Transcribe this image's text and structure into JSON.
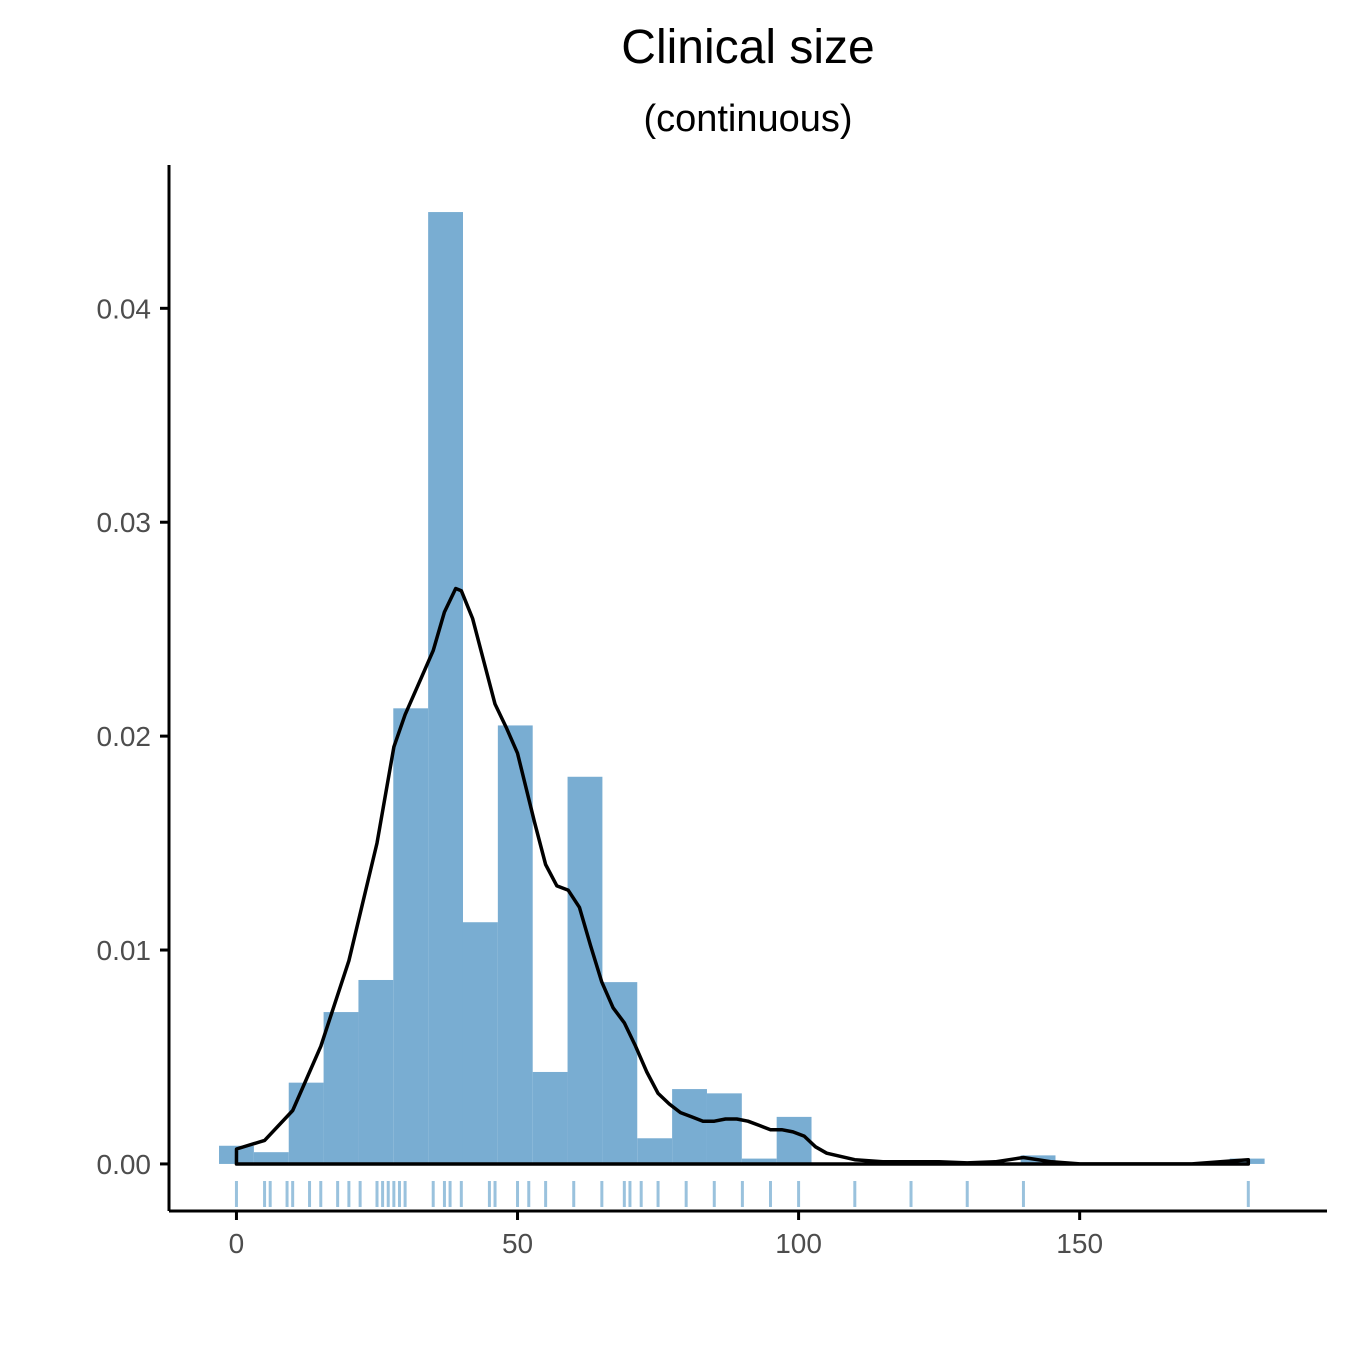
{
  "chart_data": {
    "type": "histogram",
    "title": "Clinical size",
    "subtitle": "(continuous)",
    "xlabel": "",
    "ylabel": "",
    "xlim": [
      -12,
      194
    ],
    "ylim": [
      -0.0022,
      0.0467
    ],
    "x_ticks": [
      0,
      50,
      100,
      150
    ],
    "y_ticks": [
      0,
      0.01,
      0.02,
      0.03,
      0.04
    ],
    "x_tick_labels": [
      "0",
      "50",
      "100",
      "150"
    ],
    "y_tick_labels": [
      "0.00",
      "0.01",
      "0.02",
      "0.03",
      "0.04"
    ],
    "grid": false,
    "legend": "none",
    "bar_color": "#79add2",
    "density_color": "#000000",
    "rug_color": "#1f78b4",
    "bins": [
      {
        "x0": -3.1,
        "x1": 3.1,
        "density": 0.00085
      },
      {
        "x0": 3.1,
        "x1": 9.3,
        "density": 0.00055
      },
      {
        "x0": 9.3,
        "x1": 15.5,
        "density": 0.0038
      },
      {
        "x0": 15.5,
        "x1": 21.7,
        "density": 0.0071
      },
      {
        "x0": 21.7,
        "x1": 27.9,
        "density": 0.0086
      },
      {
        "x0": 27.9,
        "x1": 34.1,
        "density": 0.0213
      },
      {
        "x0": 34.1,
        "x1": 40.3,
        "density": 0.0445
      },
      {
        "x0": 40.3,
        "x1": 46.5,
        "density": 0.0113
      },
      {
        "x0": 46.5,
        "x1": 52.7,
        "density": 0.0205
      },
      {
        "x0": 52.7,
        "x1": 58.9,
        "density": 0.0043
      },
      {
        "x0": 58.9,
        "x1": 65.1,
        "density": 0.0181
      },
      {
        "x0": 65.1,
        "x1": 71.3,
        "density": 0.0085
      },
      {
        "x0": 71.3,
        "x1": 77.5,
        "density": 0.0012
      },
      {
        "x0": 77.5,
        "x1": 83.7,
        "density": 0.0035
      },
      {
        "x0": 83.7,
        "x1": 89.9,
        "density": 0.0033
      },
      {
        "x0": 89.9,
        "x1": 96.1,
        "density": 0.00025
      },
      {
        "x0": 96.1,
        "x1": 102.3,
        "density": 0.0022
      },
      {
        "x0": 139.5,
        "x1": 145.7,
        "density": 0.0004
      },
      {
        "x0": 176.7,
        "x1": 182.9,
        "density": 0.00025
      }
    ],
    "density_curve": [
      [
        0,
        0.0007
      ],
      [
        5,
        0.0011
      ],
      [
        10,
        0.0025
      ],
      [
        15,
        0.0055
      ],
      [
        20,
        0.0095
      ],
      [
        25,
        0.015
      ],
      [
        28,
        0.0195
      ],
      [
        30,
        0.021
      ],
      [
        33,
        0.0228
      ],
      [
        35,
        0.024
      ],
      [
        37,
        0.0258
      ],
      [
        39,
        0.0269
      ],
      [
        40,
        0.0268
      ],
      [
        42,
        0.0255
      ],
      [
        44,
        0.0235
      ],
      [
        46,
        0.0215
      ],
      [
        48,
        0.0204
      ],
      [
        50,
        0.0192
      ],
      [
        53,
        0.016
      ],
      [
        55,
        0.014
      ],
      [
        57,
        0.013
      ],
      [
        59,
        0.0128
      ],
      [
        61,
        0.012
      ],
      [
        63,
        0.0102
      ],
      [
        65,
        0.0085
      ],
      [
        67,
        0.0073
      ],
      [
        69,
        0.0066
      ],
      [
        71,
        0.0055
      ],
      [
        73,
        0.0043
      ],
      [
        75,
        0.0033
      ],
      [
        77,
        0.0028
      ],
      [
        79,
        0.0024
      ],
      [
        81,
        0.0022
      ],
      [
        83,
        0.002
      ],
      [
        85,
        0.002
      ],
      [
        87,
        0.0021
      ],
      [
        89,
        0.0021
      ],
      [
        91,
        0.002
      ],
      [
        93,
        0.0018
      ],
      [
        95,
        0.0016
      ],
      [
        97,
        0.0016
      ],
      [
        99,
        0.0015
      ],
      [
        101,
        0.0013
      ],
      [
        103,
        0.0008
      ],
      [
        105,
        0.0005
      ],
      [
        110,
        0.0002
      ],
      [
        115,
        0.0001
      ],
      [
        120,
        0.0001
      ],
      [
        125,
        0.0001
      ],
      [
        130,
        5e-05
      ],
      [
        135,
        0.0001
      ],
      [
        140,
        0.0003
      ],
      [
        145,
        0.0001
      ],
      [
        150,
        0.0
      ],
      [
        160,
        0.0
      ],
      [
        170,
        0.0
      ],
      [
        175,
        0.0001
      ],
      [
        180,
        0.0002
      ]
    ],
    "rug_values": [
      0,
      5,
      6,
      9,
      10,
      13,
      15,
      18,
      20,
      22,
      25,
      26,
      27,
      28,
      29,
      30,
      35,
      37,
      38,
      40,
      45,
      46,
      50,
      52,
      55,
      60,
      65,
      69,
      70,
      72,
      75,
      80,
      85,
      90,
      95,
      100,
      110,
      120,
      130,
      140,
      180
    ]
  }
}
